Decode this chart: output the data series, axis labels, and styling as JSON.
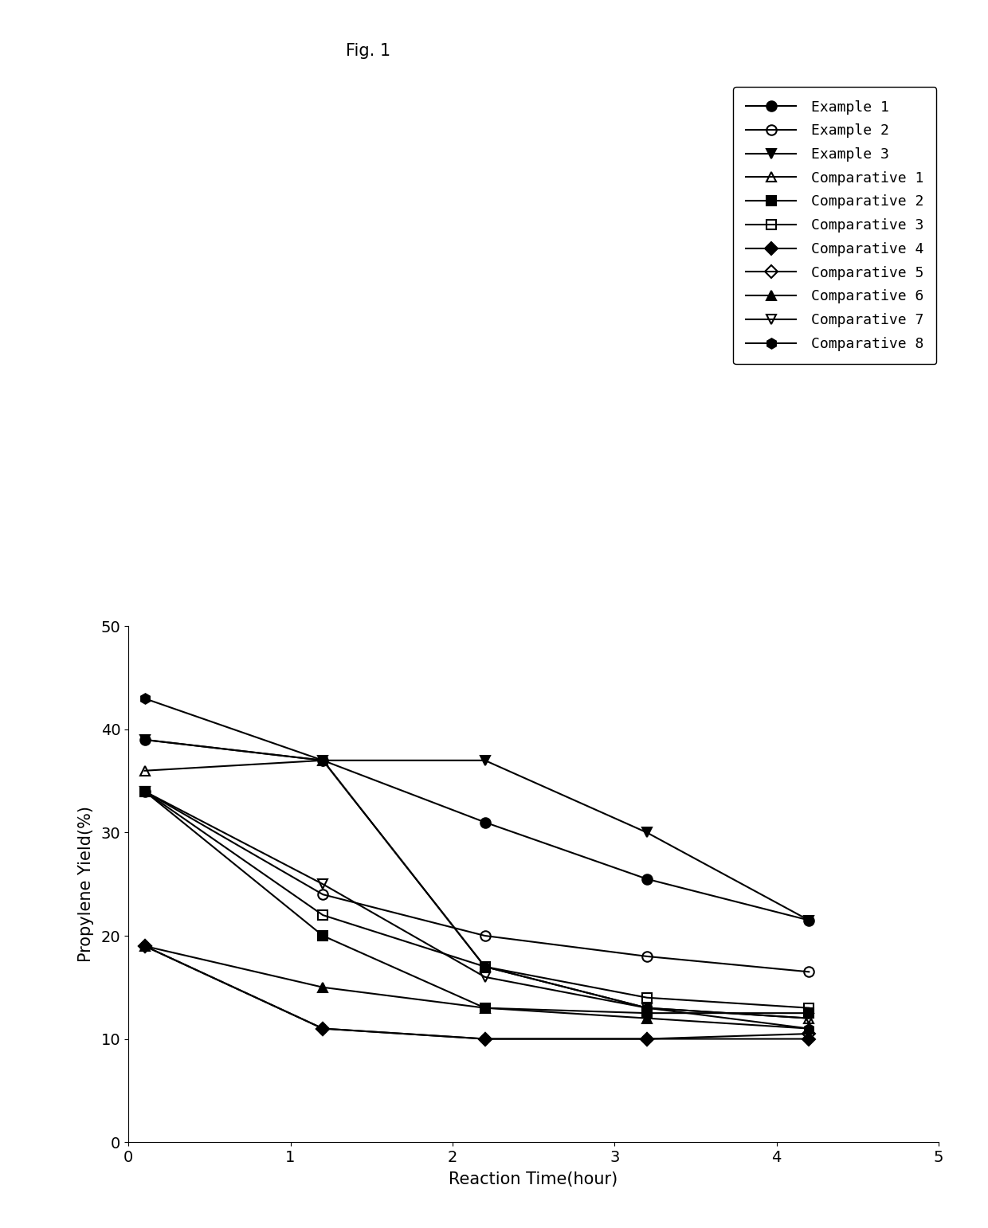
{
  "title": "Fig. 1",
  "xlabel": "Reaction Time(hour)",
  "ylabel": "Propylene Yield(%)",
  "xlim": [
    0,
    5
  ],
  "ylim": [
    0,
    50
  ],
  "xticks": [
    0,
    1,
    2,
    3,
    4,
    5
  ],
  "yticks": [
    0,
    10,
    20,
    30,
    40,
    50
  ],
  "x_points": [
    0.1,
    1.2,
    2.2,
    3.2,
    4.2
  ],
  "series": [
    {
      "label": "Example 1",
      "y": [
        39,
        37,
        31,
        25.5,
        21.5
      ],
      "marker": "o",
      "fillstyle": "full",
      "color": "black",
      "markersize": 9,
      "linewidth": 1.5
    },
    {
      "label": "Example 2",
      "y": [
        34,
        24,
        20,
        18,
        16.5
      ],
      "marker": "o",
      "fillstyle": "none",
      "color": "black",
      "markersize": 9,
      "linewidth": 1.5
    },
    {
      "label": "Example 3",
      "y": [
        39,
        37,
        37,
        30,
        21.5
      ],
      "marker": "v",
      "fillstyle": "full",
      "color": "black",
      "markersize": 9,
      "linewidth": 1.5
    },
    {
      "label": "Comparative 1",
      "y": [
        36,
        37,
        17,
        13,
        12
      ],
      "marker": "^",
      "fillstyle": "none",
      "color": "black",
      "markersize": 9,
      "linewidth": 1.5
    },
    {
      "label": "Comparative 2",
      "y": [
        34,
        20,
        13,
        12.5,
        12.5
      ],
      "marker": "s",
      "fillstyle": "full",
      "color": "black",
      "markersize": 9,
      "linewidth": 1.5
    },
    {
      "label": "Comparative 3",
      "y": [
        34,
        22,
        17,
        14,
        13
      ],
      "marker": "s",
      "fillstyle": "none",
      "color": "black",
      "markersize": 9,
      "linewidth": 1.5
    },
    {
      "label": "Comparative 4",
      "y": [
        19,
        11,
        10,
        10,
        10
      ],
      "marker": "D",
      "fillstyle": "full",
      "color": "black",
      "markersize": 8,
      "linewidth": 1.5
    },
    {
      "label": "Comparative 5",
      "y": [
        19,
        11,
        10,
        10,
        10.5
      ],
      "marker": "D",
      "fillstyle": "none",
      "color": "black",
      "markersize": 8,
      "linewidth": 1.5
    },
    {
      "label": "Comparative 6",
      "y": [
        19,
        15,
        13,
        12,
        11
      ],
      "marker": "^",
      "fillstyle": "full",
      "color": "black",
      "markersize": 9,
      "linewidth": 1.5
    },
    {
      "label": "Comparative 7",
      "y": [
        34,
        25,
        16,
        13,
        12
      ],
      "marker": "v",
      "fillstyle": "none",
      "color": "black",
      "markersize": 9,
      "linewidth": 1.5
    },
    {
      "label": "Comparative 8",
      "y": [
        43,
        37,
        17,
        13,
        11
      ],
      "marker": "h",
      "fillstyle": "full",
      "color": "black",
      "markersize": 9,
      "linewidth": 1.5
    }
  ],
  "background_color": "#ffffff",
  "title_fontsize": 15,
  "axis_fontsize": 15,
  "tick_fontsize": 14,
  "legend_fontsize": 13
}
